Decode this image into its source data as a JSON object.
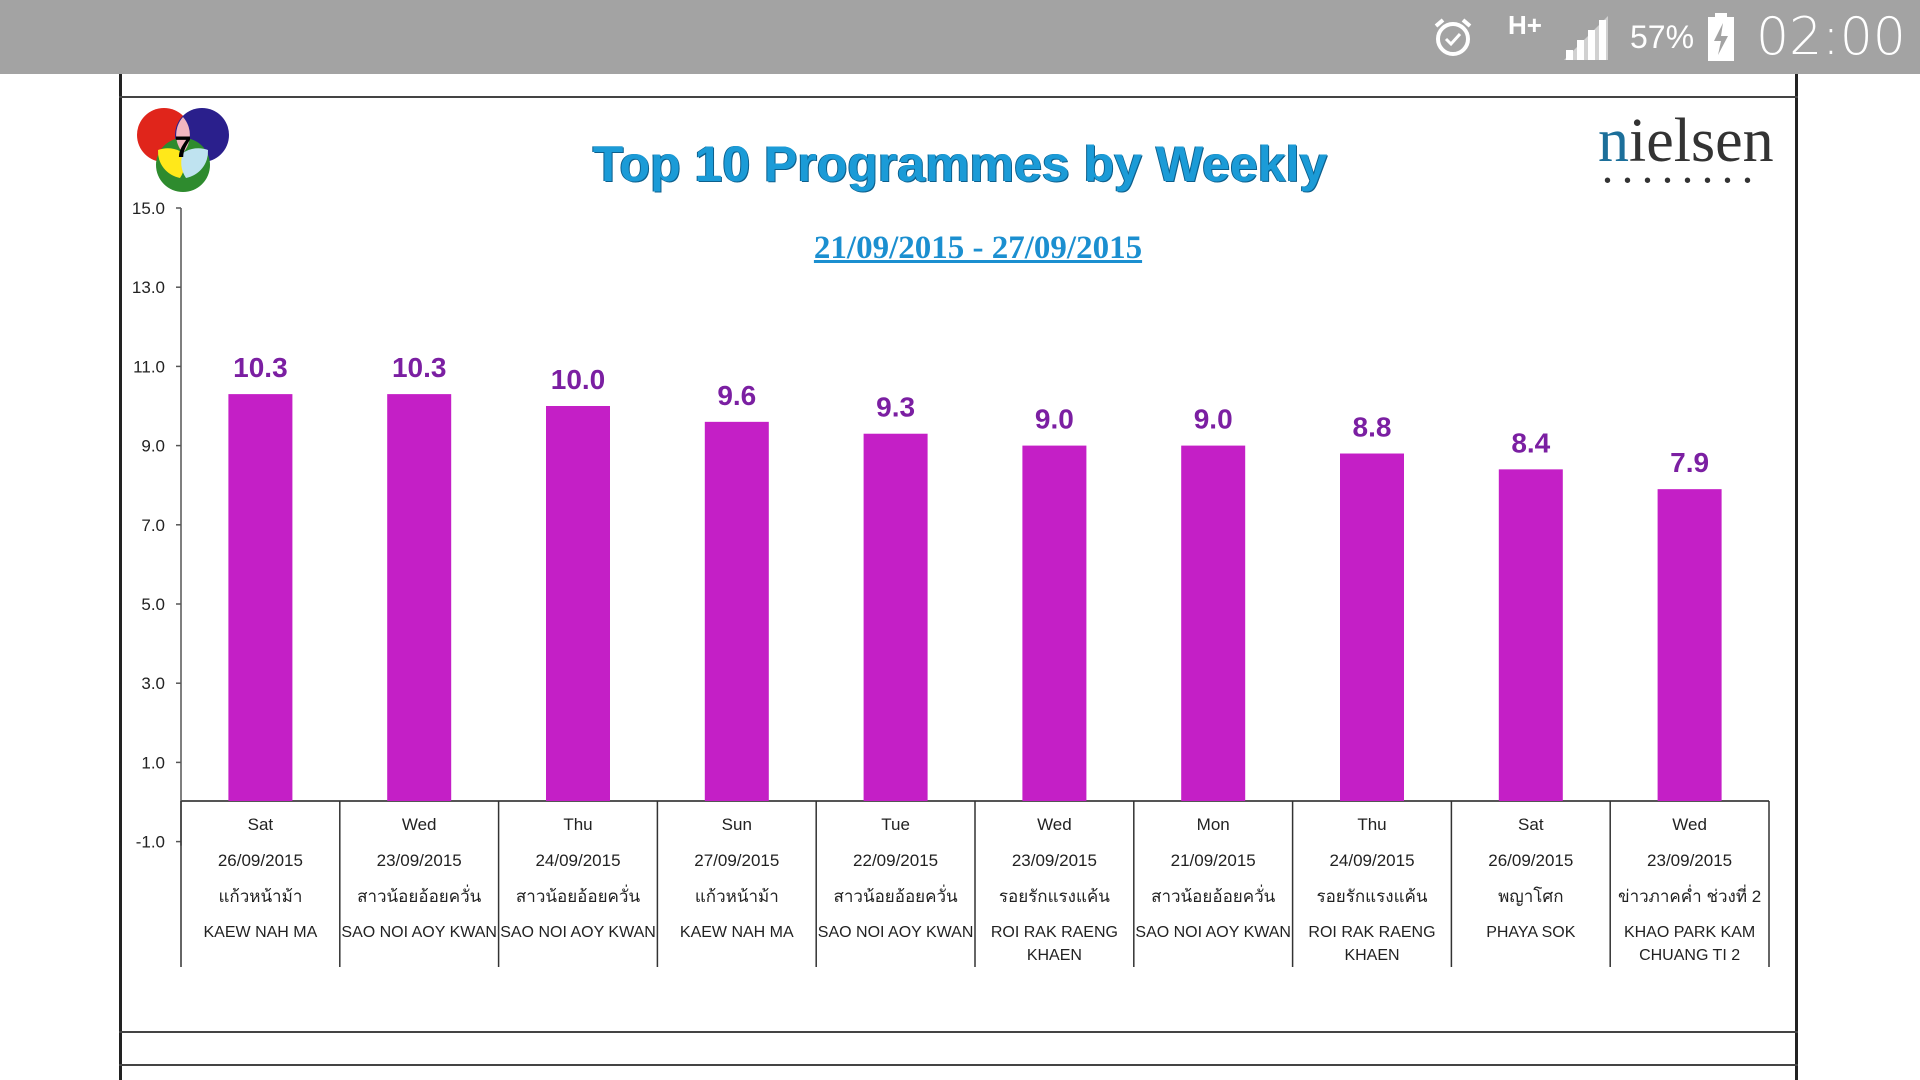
{
  "status_bar": {
    "battery": "57%",
    "time": "02:00",
    "network": "H+",
    "icons": [
      "alarm-icon",
      "network-icon",
      "signal-icon",
      "battery-charging-icon"
    ]
  },
  "header": {
    "title": "Top 10 Programmes by Weekly",
    "date_range": "21/09/2015 - 27/09/2015",
    "brand": "nielsen",
    "channel_logo": "7"
  },
  "colors": {
    "bar": "#c41fc6",
    "data_label": "#7b1fa2",
    "title": "#1b9bd7"
  },
  "chart_data": {
    "type": "bar",
    "title": "Top 10 Programmes by Weekly",
    "subtitle": "21/09/2015 - 27/09/2015",
    "ylim": [
      -1,
      15
    ],
    "yticks": [
      "15.0",
      "13.0",
      "11.0",
      "9.0",
      "7.0",
      "5.0",
      "3.0",
      "1.0",
      "-1.0"
    ],
    "ytick_values": [
      15,
      13,
      11,
      9,
      7,
      5,
      3,
      1,
      -1
    ],
    "values": [
      10.3,
      10.3,
      10.0,
      9.6,
      9.3,
      9.0,
      9.0,
      8.8,
      8.4,
      7.9
    ],
    "value_labels": [
      "10.3",
      "10.3",
      "10.0",
      "9.6",
      "9.3",
      "9.0",
      "9.0",
      "8.8",
      "8.4",
      "7.9"
    ],
    "categories": [
      {
        "day": "Sat",
        "date": "26/09/2015",
        "thai": "แก้วหน้าม้า",
        "english": [
          "KAEW NAH MA"
        ]
      },
      {
        "day": "Wed",
        "date": "23/09/2015",
        "thai": "สาวน้อยอ้อยควั่น",
        "english": [
          "SAO NOI AOY KWAN"
        ]
      },
      {
        "day": "Thu",
        "date": "24/09/2015",
        "thai": "สาวน้อยอ้อยควั่น",
        "english": [
          "SAO NOI AOY KWAN"
        ]
      },
      {
        "day": "Sun",
        "date": "27/09/2015",
        "thai": "แก้วหน้าม้า",
        "english": [
          "KAEW NAH MA"
        ]
      },
      {
        "day": "Tue",
        "date": "22/09/2015",
        "thai": "สาวน้อยอ้อยควั่น",
        "english": [
          "SAO NOI AOY KWAN"
        ]
      },
      {
        "day": "Wed",
        "date": "23/09/2015",
        "thai": "รอยรักแรงแค้น",
        "english": [
          "ROI RAK RAENG",
          "KHAEN"
        ]
      },
      {
        "day": "Mon",
        "date": "21/09/2015",
        "thai": "สาวน้อยอ้อยควั่น",
        "english": [
          "SAO NOI AOY KWAN"
        ]
      },
      {
        "day": "Thu",
        "date": "24/09/2015",
        "thai": "รอยรักแรงแค้น",
        "english": [
          "ROI RAK RAENG",
          "KHAEN"
        ]
      },
      {
        "day": "Sat",
        "date": "26/09/2015",
        "thai": "พญาโศก",
        "english": [
          "PHAYA SOK"
        ]
      },
      {
        "day": "Wed",
        "date": "23/09/2015",
        "thai": "ข่าวภาคค่ำ ช่วงที่ 2",
        "english": [
          "KHAO PARK KAM",
          "CHUANG TI 2"
        ]
      }
    ],
    "grid": false,
    "legend": "none"
  }
}
